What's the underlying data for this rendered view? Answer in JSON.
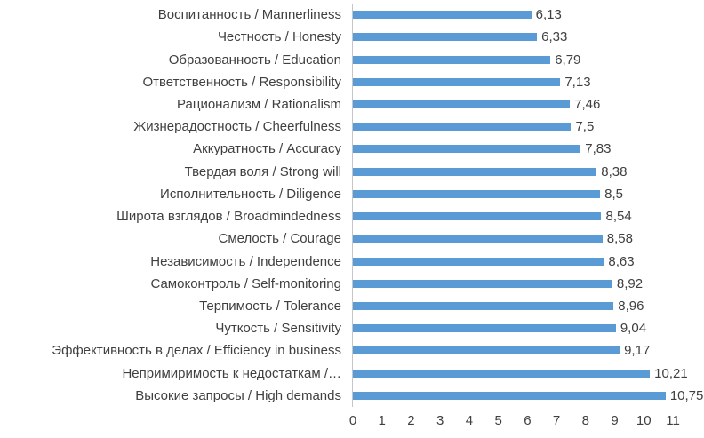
{
  "chart_data": {
    "type": "bar",
    "orientation": "horizontal",
    "title": "",
    "xlabel": "",
    "ylabel": "",
    "xlim": [
      0,
      11
    ],
    "grid": false,
    "legend": false,
    "bar_color": "#5b9bd5",
    "text_color": "#404040",
    "x_ticks": [
      "0",
      "1",
      "2",
      "3",
      "4",
      "5",
      "6",
      "7",
      "8",
      "9",
      "10",
      "11"
    ],
    "categories": [
      "Воспитанность / Mannerliness",
      "Честность / Honesty",
      "Образованность / Education",
      "Ответственность / Responsibility",
      "Рационализм / Rationalism",
      "Жизнерадостность / Cheerfulness",
      "Аккуратность / Accuracy",
      "Твердая воля / Strong will",
      "Исполнительность / Diligence",
      "Широта взглядов / Broadmindedness",
      "Смелость / Courage",
      "Независимость / Independence",
      "Самоконтроль / Self-monitoring",
      "Терпимость / Tolerance",
      "Чуткость / Sensitivity",
      "Эффективность в делах / Efficiency in business",
      "Непримиримость к недостаткам /…",
      "Высокие запросы / High demands"
    ],
    "values": [
      6.13,
      6.33,
      6.79,
      7.13,
      7.46,
      7.5,
      7.83,
      8.38,
      8.5,
      8.54,
      8.58,
      8.63,
      8.92,
      8.96,
      9.04,
      9.17,
      10.21,
      10.75
    ],
    "value_labels": [
      "6,13",
      "6,33",
      "6,79",
      "7,13",
      "7,46",
      "7,5",
      "7,83",
      "8,38",
      "8,5",
      "8,54",
      "8,58",
      "8,63",
      "8,92",
      "8,96",
      "9,04",
      "9,17",
      "10,21",
      "10,75"
    ]
  }
}
